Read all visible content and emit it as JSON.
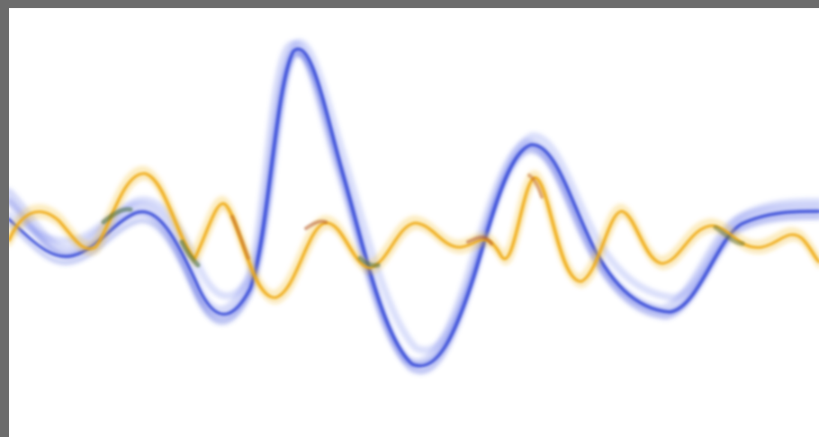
{
  "colors": {
    "frame": "#6c6c6c",
    "background": "#ffffff",
    "blue_wave": "#3a4fd8",
    "yellow_wave": "#f2b418",
    "overlap_green": "#3f6a3a",
    "overlap_brown": "#b4581f"
  },
  "waves": [
    {
      "name": "blue",
      "color_key": "blue_wave"
    },
    {
      "name": "yellow",
      "color_key": "yellow_wave"
    }
  ]
}
